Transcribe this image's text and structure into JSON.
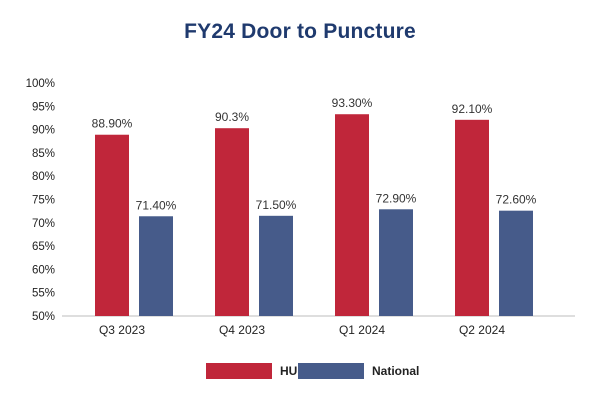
{
  "chart_data": {
    "type": "bar",
    "title": "FY24 Door to Puncture",
    "xlabel": "",
    "ylabel": "",
    "categories": [
      "Q3 2023",
      "Q4 2023",
      "Q1 2024",
      "Q2 2024"
    ],
    "ylim": [
      50,
      100
    ],
    "yticks": [
      50,
      55,
      60,
      65,
      70,
      75,
      80,
      85,
      90,
      95,
      100
    ],
    "ytick_labels": [
      "50%",
      "55%",
      "60%",
      "65%",
      "70%",
      "75%",
      "80%",
      "85%",
      "90%",
      "95%",
      "100%"
    ],
    "grid": false,
    "legend_position": "bottom-center",
    "series": [
      {
        "name": "HUP",
        "color": "#c0263a",
        "values": [
          88.9,
          90.3,
          93.3,
          92.1
        ],
        "labels": [
          "88.90%",
          "90.3%",
          "93.30%",
          "92.10%"
        ]
      },
      {
        "name": "National",
        "color": "#465b8a",
        "values": [
          71.4,
          71.5,
          72.9,
          72.6
        ],
        "labels": [
          "71.40%",
          "71.50%",
          "72.90%",
          "72.60%"
        ]
      }
    ]
  }
}
